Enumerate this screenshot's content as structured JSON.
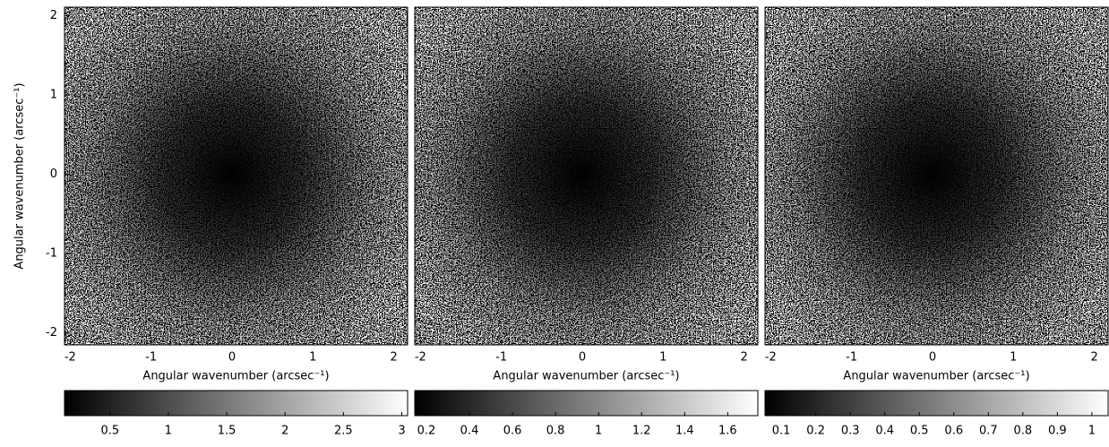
{
  "chart_data": [
    {
      "type": "heatmap",
      "colormap": [
        "#000000",
        "#ffffff"
      ],
      "xlim": [
        -2.07,
        2.17
      ],
      "ylim": [
        -2.15,
        2.11
      ],
      "xticks": [
        -2,
        -1,
        0,
        1,
        2
      ],
      "yticks": [
        -2,
        -1,
        0,
        1,
        2
      ],
      "xlabel": "Angular wavenumber (arcsec⁻¹)",
      "ylabel": "Angular wavenumber (arcsec⁻¹)",
      "colorbar": {
        "lim": [
          0.11,
          3.05
        ],
        "ticks": [
          0.5,
          1,
          1.5,
          2,
          2.5,
          3
        ]
      }
    },
    {
      "type": "heatmap",
      "colormap": [
        "#000000",
        "#ffffff"
      ],
      "xlim": [
        -2.07,
        2.17
      ],
      "ylim": [
        -2.15,
        2.11
      ],
      "xticks": [
        -2,
        -1,
        0,
        1,
        2
      ],
      "xlabel": "Angular wavenumber (arcsec⁻¹)",
      "colorbar": {
        "lim": [
          0.146,
          1.74
        ],
        "ticks": [
          0.2,
          0.4,
          0.6,
          0.8,
          1,
          1.2,
          1.4,
          1.6
        ]
      }
    },
    {
      "type": "heatmap",
      "colormap": [
        "#000000",
        "#ffffff"
      ],
      "xlim": [
        -2.07,
        2.17
      ],
      "ylim": [
        -2.15,
        2.11
      ],
      "xticks": [
        -2,
        -1,
        0,
        1,
        2
      ],
      "xlabel": "Angular wavenumber (arcsec⁻¹)",
      "colorbar": {
        "lim": [
          0.053,
          1.047
        ],
        "ticks": [
          0.1,
          0.2,
          0.3,
          0.4,
          0.5,
          0.6,
          0.7,
          0.8,
          0.9,
          1
        ]
      }
    }
  ]
}
